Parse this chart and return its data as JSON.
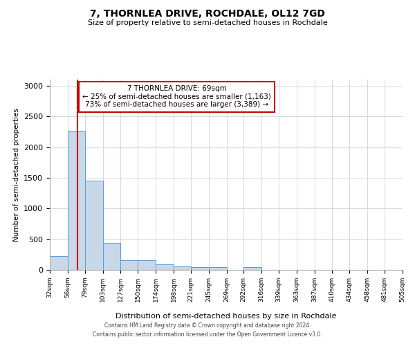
{
  "title": "7, THORNLEA DRIVE, ROCHDALE, OL12 7GD",
  "subtitle": "Size of property relative to semi-detached houses in Rochdale",
  "xlabel": "Distribution of semi-detached houses by size in Rochdale",
  "ylabel": "Number of semi-detached properties",
  "footer_line1": "Contains HM Land Registry data © Crown copyright and database right 2024.",
  "footer_line2": "Contains public sector information licensed under the Open Government Licence v3.0.",
  "property_size": 69,
  "annotation_line1": "7 THORNLEA DRIVE: 69sqm",
  "annotation_line2": "← 25% of semi-detached houses are smaller (1,163)",
  "annotation_line3": "73% of semi-detached houses are larger (3,389) →",
  "bar_color": "#c8d8e8",
  "bar_edge_color": "#5b9bd5",
  "grid_color": "#d0d8e8",
  "redline_color": "#cc0000",
  "annotation_box_color": "#ffffff",
  "annotation_box_edge": "#cc0000",
  "bins": [
    32,
    56,
    79,
    103,
    127,
    150,
    174,
    198,
    221,
    245,
    269,
    292,
    316,
    339,
    363,
    387,
    410,
    434,
    458,
    481,
    505
  ],
  "counts": [
    220,
    2270,
    1450,
    440,
    155,
    155,
    90,
    60,
    50,
    50,
    0,
    50,
    0,
    0,
    0,
    0,
    0,
    0,
    0,
    0
  ],
  "ylim": [
    0,
    3100
  ],
  "yticks": [
    0,
    500,
    1000,
    1500,
    2000,
    2500,
    3000
  ]
}
